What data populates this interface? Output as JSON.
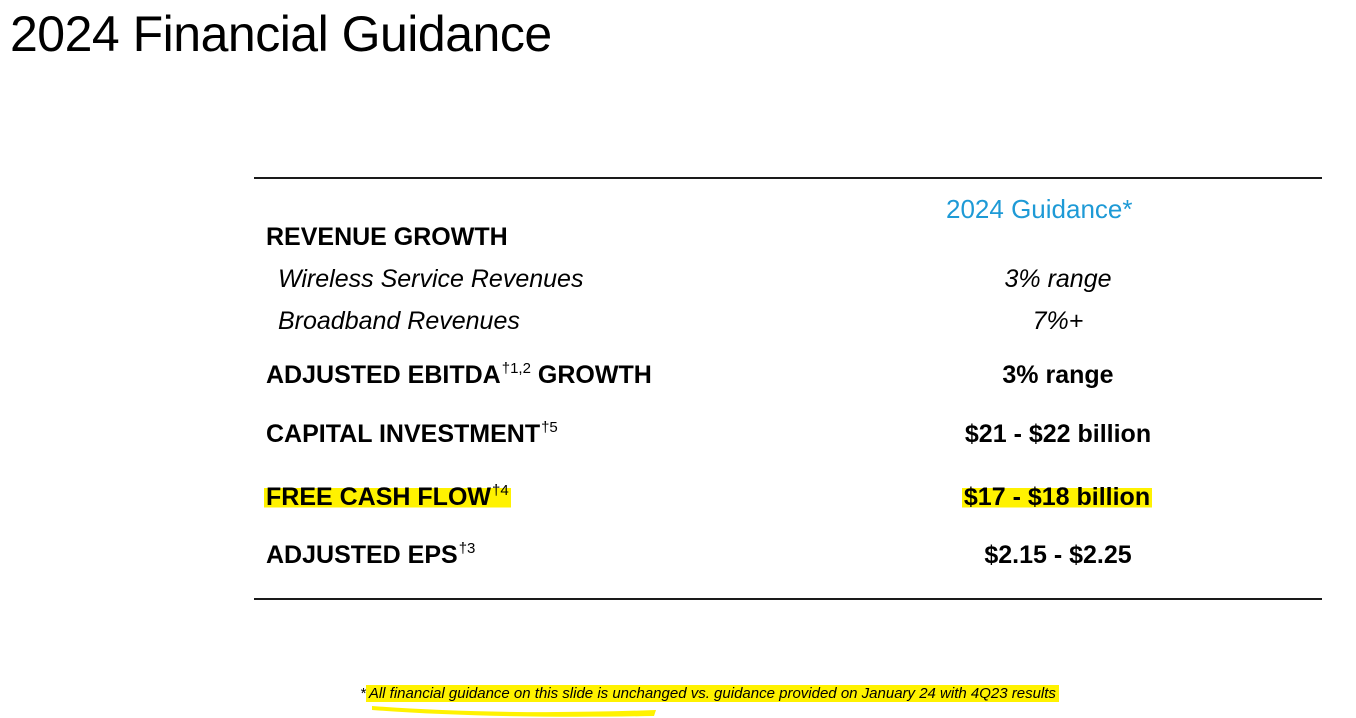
{
  "title": "2024 Financial Guidance",
  "column_header": "2024 Guidance*",
  "rows": {
    "revenue_growth": {
      "label": "REVENUE GROWTH"
    },
    "wireless": {
      "label": "Wireless Service Revenues",
      "value": "3% range"
    },
    "broadband": {
      "label": "Broadband Revenues",
      "value": "7%+"
    },
    "ebitda": {
      "label": "ADJUSTED EBITDA",
      "mark": "†1,2",
      "label_suffix": " GROWTH",
      "value": "3% range"
    },
    "capex": {
      "label": "CAPITAL INVESTMENT",
      "mark": "†5",
      "value": "$21 - $22 billion"
    },
    "fcf": {
      "label": "FREE CASH FLOW",
      "mark": "†4",
      "value": "$17 - $18 billion"
    },
    "eps": {
      "label": "ADJUSTED EPS",
      "mark": "†3",
      "value": "$2.15 - $2.25"
    }
  },
  "footnote": {
    "star": "*",
    "text": "All financial guidance on this slide is unchanged vs. guidance provided on January 24 with 4Q23 results"
  },
  "colors": {
    "accent": "#1e9ad6",
    "highlight": "#fff200",
    "rule": "#1a1a1a"
  }
}
